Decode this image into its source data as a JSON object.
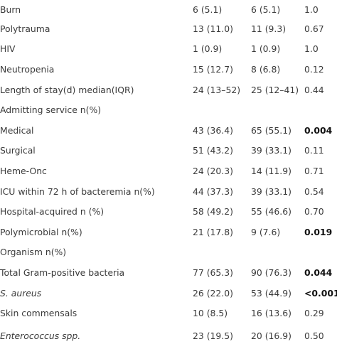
{
  "rows": [
    {
      "label": "Burn",
      "g1": "6 (5.1)",
      "g2": "6 (5.1)",
      "p": "1.0"
    },
    {
      "label": "Polytrauma",
      "g1": "13 (11.0)",
      "g2": "11 (9.3)",
      "p": "0.67"
    },
    {
      "label": "HIV",
      "g1": "1 (0.9)",
      "g2": "1 (0.9)",
      "p": "1.0"
    },
    {
      "label": "Neutropenia",
      "g1": "15 (12.7)",
      "g2": "8 (6.8)",
      "p": "0.12"
    },
    {
      "label": "Length of stay(d) median(IQR)",
      "g1": "24 (13–52)",
      "g2": "25 (12–41)",
      "p": "0.44"
    },
    {
      "label": "Admitting service n(%)",
      "g1": "",
      "g2": "",
      "p": ""
    },
    {
      "label": "Medical",
      "g1": "43 (36.4)",
      "g2": "65 (55.1)",
      "p": "0.004"
    },
    {
      "label": "Surgical",
      "g1": "51 (43.2)",
      "g2": "39 (33.1)",
      "p": "0.11"
    },
    {
      "label": "Heme-Onc",
      "g1": "24 (20.3)",
      "g2": "14 (11.9)",
      "p": "0.71"
    },
    {
      "label": "ICU within 72 h of bacteremia n(%)",
      "g1": "44 (37.3)",
      "g2": "39 (33.1)",
      "p": "0.54"
    },
    {
      "label": "Hospital-acquired n (%)",
      "g1": "58 (49.2)",
      "g2": "55 (46.6)",
      "p": "0.70"
    },
    {
      "label": "Polymicrobial n(%)",
      "g1": "21 (17.8)",
      "g2": "9 (7.6)",
      "p": "0.019"
    },
    {
      "label": "Organism n(%)",
      "g1": "",
      "g2": "",
      "p": ""
    },
    {
      "label": "Total Gram-positive bacteria",
      "g1": "77 (65.3)",
      "g2": "90 (76.3)",
      "p": "0.044"
    },
    {
      "label": "S. aureus",
      "g1": "26 (22.0)",
      "g2": "53 (44.9)",
      "p": "<0.001"
    },
    {
      "label": "Skin commensals",
      "g1": "10 (8.5)",
      "g2": "16 (13.6)",
      "p": "0.29"
    },
    {
      "label": "Enterococcus spp.",
      "g1": "23 (19.5)",
      "g2": "20 (16.9)",
      "p": "0.50"
    }
  ]
}
